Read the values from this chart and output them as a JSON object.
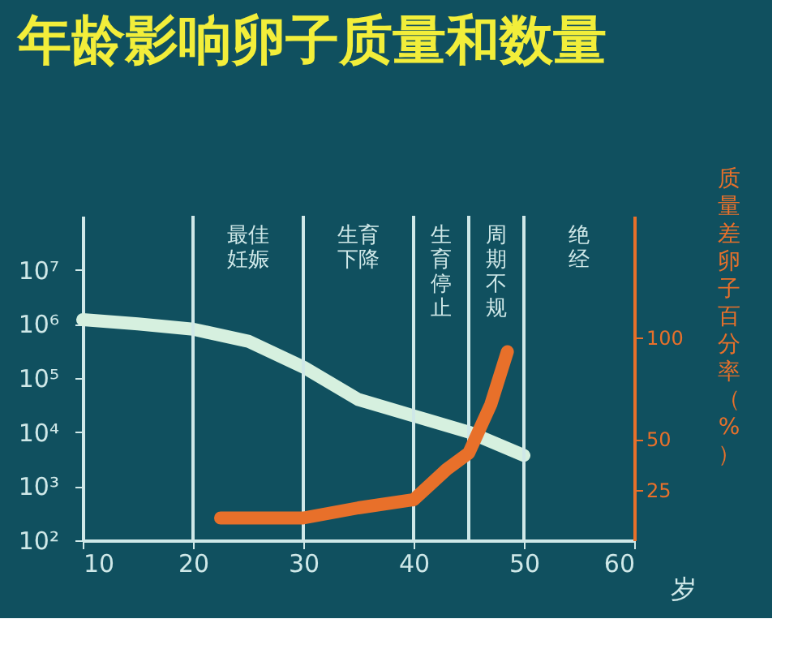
{
  "chart_data": {
    "type": "line",
    "title": "年龄影响卵子质量和数量",
    "xlabel": "岁",
    "y2label": "质量差卵子百分率（%）",
    "xlim": [
      10,
      60
    ],
    "xticks": [
      10,
      20,
      30,
      40,
      50,
      60
    ],
    "ylim": [
      100,
      100000000
    ],
    "log": "y",
    "yticks": [
      {
        "value": 100,
        "label": "10²"
      },
      {
        "value": 1000,
        "label": "10³"
      },
      {
        "value": 10000,
        "label": "10⁴"
      },
      {
        "value": 100000,
        "label": "10⁵"
      },
      {
        "value": 1000000,
        "label": "10⁶"
      },
      {
        "value": 10000000,
        "label": "10⁷"
      }
    ],
    "y2lim": [
      0,
      160
    ],
    "y2ticks": [
      25,
      50,
      100
    ],
    "grid": false,
    "line_style": "solid",
    "series": [
      {
        "color": "#d6f0df",
        "x": [
          10,
          15,
          20,
          25,
          30,
          35,
          40,
          45,
          50
        ],
        "values": [
          1200000,
          1000000,
          800000,
          480000,
          160000,
          40000,
          20000,
          10000,
          3700
        ]
      },
      {
        "color": "#e8702a",
        "axis": "y2",
        "x": [
          22.5,
          27,
          30,
          35,
          40,
          43,
          45,
          47,
          48.5
        ],
        "values": [
          11,
          11,
          11,
          16,
          20,
          35,
          43,
          67,
          93
        ]
      }
    ],
    "ref_lines": [
      {
        "axis": "x",
        "value": 20,
        "label": "最佳妊娠",
        "color": "#cfe8e8"
      },
      {
        "axis": "x",
        "value": 30,
        "label": "生育下降",
        "color": "#cfe8e8"
      },
      {
        "axis": "x",
        "value": 40,
        "label": "生育停止",
        "color": "#cfe8e8"
      },
      {
        "axis": "x",
        "value": 45,
        "label": "周期不规",
        "color": "#cfe8e8"
      },
      {
        "axis": "x",
        "value": 50,
        "label": "绝经",
        "color": "#cfe8e8",
        "line_style": "solid"
      }
    ]
  }
}
